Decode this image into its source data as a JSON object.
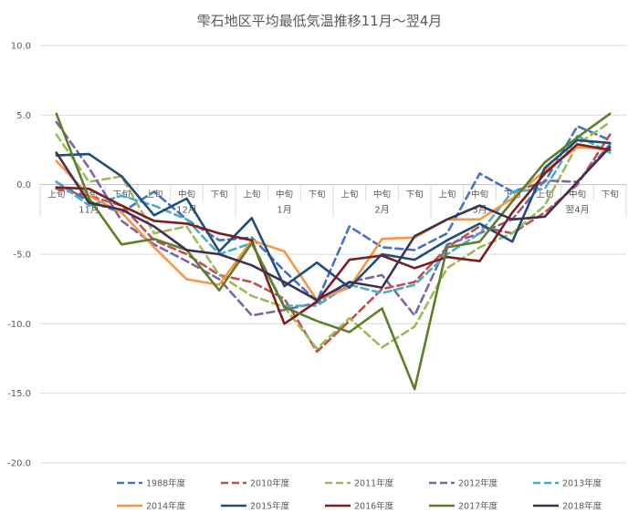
{
  "chart_data": {
    "type": "line",
    "title": "雫石地区平均最低気温推移11月～翌4月",
    "xlabel": "",
    "ylabel": "",
    "ylim": [
      -20,
      10
    ],
    "yticks": [
      "10.0",
      "5.0",
      "0.0",
      "-5.0",
      "-10.0",
      "-15.0",
      "-20.0"
    ],
    "grid": "horizontal",
    "legend_position": "bottom",
    "x_tick_labels": [
      "上旬",
      "中旬",
      "下旬",
      "上旬",
      "中旬",
      "下旬",
      "上旬",
      "中旬",
      "下旬",
      "上旬",
      "中旬",
      "下旬",
      "上旬",
      "中旬",
      "下旬",
      "上旬",
      "中旬",
      "下旬"
    ],
    "month_labels": [
      "11月",
      "12月",
      "1月",
      "2月",
      "3月",
      "翌4月"
    ],
    "series": [
      {
        "name": "1988年度",
        "color": "#4472C4",
        "dash": true,
        "values": [
          0.2,
          -1.2,
          -2.0,
          -0.5,
          -2.5,
          -4.0,
          -3.8,
          -6.2,
          -8.4,
          -3.0,
          -4.5,
          -4.7,
          -3.5,
          0.8,
          -0.5,
          0.2,
          4.2,
          3.2
        ]
      },
      {
        "name": "2010年度",
        "color": "#C0504D",
        "dash": true,
        "values": [
          -0.3,
          -0.8,
          -1.5,
          -4.0,
          -5.0,
          -6.5,
          -7.0,
          -8.2,
          -12.0,
          -9.8,
          -7.5,
          -7.0,
          -4.5,
          -3.0,
          -3.5,
          -2.0,
          0.0,
          3.6
        ]
      },
      {
        "name": "2011年度",
        "color": "#9BBB59",
        "dash": true,
        "values": [
          3.6,
          0.2,
          0.6,
          -3.5,
          -3.0,
          -6.5,
          -8.0,
          -8.8,
          -11.8,
          -9.6,
          -11.7,
          -10.2,
          -6.0,
          -4.5,
          -3.5,
          -1.5,
          2.9,
          4.5
        ]
      },
      {
        "name": "2012年度",
        "color": "#8064A2",
        "dash": true,
        "values": [
          4.5,
          1.2,
          -2.6,
          -4.3,
          -5.5,
          -6.8,
          -9.4,
          -9.0,
          -8.5,
          -7.0,
          -6.5,
          -9.4,
          -4.3,
          -3.5,
          -2.5,
          0.3,
          0.2,
          2.9
        ]
      },
      {
        "name": "2013年度",
        "color": "#4BACC6",
        "dash": true,
        "values": [
          0.2,
          -1.5,
          -0.8,
          -1.5,
          -2.5,
          -5.0,
          -4.2,
          -8.7,
          -8.7,
          -7.2,
          -7.8,
          -7.2,
          -5.0,
          -3.5,
          -0.5,
          -0.3,
          3.5,
          2.3
        ]
      },
      {
        "name": "2014年度",
        "color": "#F79646",
        "dash": false,
        "values": [
          1.7,
          -0.8,
          -2.0,
          -4.5,
          -6.8,
          -7.2,
          -4.0,
          -4.8,
          -8.3,
          -7.4,
          -3.9,
          -3.8,
          -2.5,
          -2.5,
          -1.0,
          1.0,
          2.7,
          2.5
        ]
      },
      {
        "name": "2015年度",
        "color": "#1F4E79",
        "dash": false,
        "values": [
          2.1,
          2.2,
          0.6,
          -2.2,
          -1.0,
          -4.8,
          -2.4,
          -7.3,
          -5.6,
          -7.4,
          -5.0,
          -5.4,
          -4.0,
          -2.8,
          -4.1,
          1.2,
          3.2,
          3.0
        ]
      },
      {
        "name": "2016年度",
        "color": "#7B1E1E",
        "dash": false,
        "values": [
          -0.2,
          -0.3,
          -1.5,
          -2.6,
          -2.8,
          -3.5,
          -4.0,
          -10.0,
          -8.4,
          -5.4,
          -5.1,
          -6.0,
          -5.2,
          -5.5,
          -2.0,
          0.8,
          2.9,
          2.5
        ]
      },
      {
        "name": "2017年度",
        "color": "#5E7F2A",
        "dash": false,
        "values": [
          5.1,
          -1.0,
          -4.3,
          -3.9,
          -4.7,
          -7.6,
          -4.2,
          -8.8,
          -9.8,
          -10.6,
          -8.9,
          -14.7,
          -4.5,
          -4.1,
          -1.2,
          1.6,
          3.4,
          5.1
        ]
      },
      {
        "name": "2018年度",
        "color": "#403152",
        "dash": false,
        "values": [
          2.3,
          -1.3,
          -1.8,
          -3.0,
          -4.7,
          -5.0,
          -5.8,
          -7.0,
          -8.3,
          -7.0,
          -7.4,
          -3.7,
          -2.5,
          -1.5,
          -2.5,
          -2.3,
          0.2,
          2.7
        ]
      }
    ]
  }
}
